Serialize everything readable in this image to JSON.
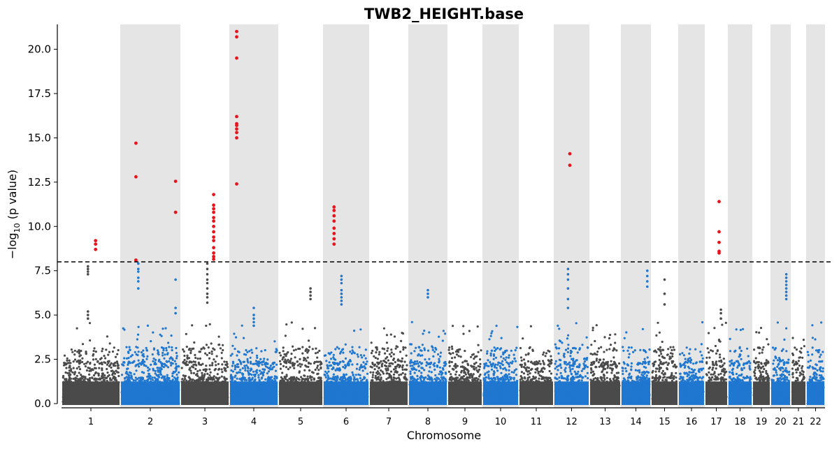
{
  "chart_data": {
    "type": "scatter",
    "subtype": "manhattan",
    "title": "TWB2_HEIGHT.base",
    "xlabel": "Chromosome",
    "ylabel": "−log",
    "ylabel_sub": "10",
    "ylabel_suffix": " (p value)",
    "ylim": [
      0,
      21.4
    ],
    "yticks": [
      0.0,
      2.5,
      5.0,
      7.5,
      10.0,
      12.5,
      15.0,
      17.5,
      20.0
    ],
    "ytick_labels": [
      "0.0",
      "2.5",
      "5.0",
      "7.5",
      "10.0",
      "12.5",
      "15.0",
      "17.5",
      "20.0"
    ],
    "threshold": 8,
    "threshold_style": "dashed",
    "grid": false,
    "legend": "none",
    "colors": {
      "odd": "#4a4a4a",
      "even": "#1f77d0",
      "significant": "#e8141c",
      "band": "#e5e5e5",
      "threshold": "#000000"
    },
    "chromosomes": [
      {
        "label": "1",
        "shaded": false
      },
      {
        "label": "2",
        "shaded": true
      },
      {
        "label": "3",
        "shaded": false
      },
      {
        "label": "4",
        "shaded": true
      },
      {
        "label": "5",
        "shaded": false
      },
      {
        "label": "6",
        "shaded": true
      },
      {
        "label": "7",
        "shaded": false
      },
      {
        "label": "8",
        "shaded": true
      },
      {
        "label": "9",
        "shaded": false
      },
      {
        "label": "10",
        "shaded": true
      },
      {
        "label": "11",
        "shaded": false
      },
      {
        "label": "12",
        "shaded": true
      },
      {
        "label": "13",
        "shaded": false
      },
      {
        "label": "14",
        "shaded": true
      },
      {
        "label": "15",
        "shaded": false
      },
      {
        "label": "16",
        "shaded": true
      },
      {
        "label": "17",
        "shaded": false
      },
      {
        "label": "18",
        "shaded": true
      },
      {
        "label": "19",
        "shaded": false
      },
      {
        "label": "20",
        "shaded": true
      },
      {
        "label": "21",
        "shaded": false
      },
      {
        "label": "22",
        "shaded": true
      }
    ],
    "significant_points": [
      {
        "chr": "1",
        "y": [
          9.2,
          9.0,
          8.7
        ]
      },
      {
        "chr": "2",
        "y": [
          14.7,
          12.8,
          8.1
        ]
      },
      {
        "chr": "2",
        "y": [
          12.55,
          10.8
        ]
      },
      {
        "chr": "3",
        "y": [
          11.8,
          11.2,
          11.0,
          10.8,
          10.5,
          10.3,
          10.0,
          9.7,
          9.4,
          9.2,
          8.8,
          8.5,
          8.3,
          8.15
        ]
      },
      {
        "chr": "4",
        "y": [
          21.0,
          20.7,
          19.5,
          16.2,
          15.8,
          15.7,
          15.5,
          15.3,
          15.0,
          12.4
        ]
      },
      {
        "chr": "6",
        "y": [
          11.1,
          10.9,
          10.6,
          10.3,
          9.9,
          9.6,
          9.3,
          9.0
        ]
      },
      {
        "chr": "12",
        "y": [
          14.1,
          13.45
        ]
      },
      {
        "chr": "17",
        "y": [
          11.4,
          9.7,
          9.1,
          8.6,
          8.5
        ]
      }
    ],
    "peak_points": [
      {
        "chr": "1",
        "y": [
          7.75,
          7.6,
          7.45,
          7.3,
          5.2,
          5.0,
          4.8
        ]
      },
      {
        "chr": "2",
        "y": [
          7.9,
          7.6,
          7.45,
          7.1,
          6.9,
          6.5
        ]
      },
      {
        "chr": "2",
        "y": [
          7.0,
          5.4,
          5.1
        ]
      },
      {
        "chr": "3",
        "y": [
          7.9,
          7.6,
          7.3,
          7.0,
          6.8,
          6.5,
          6.2,
          6.0,
          5.7
        ]
      },
      {
        "chr": "4",
        "y": [
          5.4,
          5.0,
          4.8,
          4.6,
          4.4
        ]
      },
      {
        "chr": "5",
        "y": [
          6.5,
          6.3,
          6.1,
          5.9
        ]
      },
      {
        "chr": "6",
        "y": [
          7.2,
          7.0,
          6.8,
          6.4,
          6.2,
          6.0,
          5.8,
          5.6
        ]
      },
      {
        "chr": "8",
        "y": [
          6.4,
          6.2,
          6.0
        ]
      },
      {
        "chr": "12",
        "y": [
          7.6,
          7.3,
          7.0,
          6.5,
          5.9,
          5.4
        ]
      },
      {
        "chr": "14",
        "y": [
          7.5,
          7.2,
          6.9,
          6.6
        ]
      },
      {
        "chr": "15",
        "y": [
          7.0,
          6.2,
          5.6
        ]
      },
      {
        "chr": "17",
        "y": [
          5.3,
          5.1,
          4.8
        ]
      },
      {
        "chr": "20",
        "y": [
          7.3,
          7.1,
          6.9,
          6.7,
          6.5,
          6.3,
          6.1,
          5.9
        ]
      }
    ]
  }
}
